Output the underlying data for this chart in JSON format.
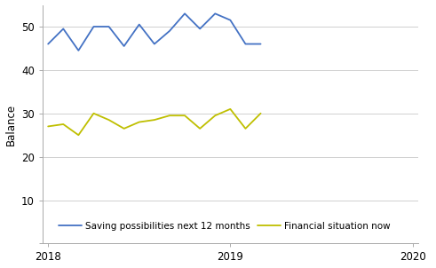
{
  "saving_possibilities": [
    46,
    49.5,
    44.5,
    50,
    50,
    45.5,
    50.5,
    46,
    49,
    53,
    49.5,
    53,
    51.5,
    46,
    46
  ],
  "financial_situation": [
    27,
    27.5,
    25,
    30,
    28.5,
    26.5,
    28,
    28.5,
    29.5,
    29.5,
    26.5,
    29.5,
    31,
    26.5,
    30
  ],
  "blue_color": "#4472C4",
  "yellow_color": "#BFBF00",
  "ylabel": "Balance",
  "ylim": [
    0,
    55
  ],
  "yticks": [
    0,
    10,
    20,
    30,
    40,
    50
  ],
  "xlim": [
    2017.97,
    2020.03
  ],
  "xticks": [
    2018,
    2019,
    2020
  ],
  "legend_label_blue": "Saving possibilities next 12 months",
  "legend_label_yellow": "Financial situation now",
  "background_color": "#ffffff",
  "grid_color": "#d0d0d0",
  "spine_color": "#aaaaaa",
  "line_width": 1.3,
  "tick_fontsize": 8.5,
  "ylabel_fontsize": 8.5,
  "legend_fontsize": 7.5
}
